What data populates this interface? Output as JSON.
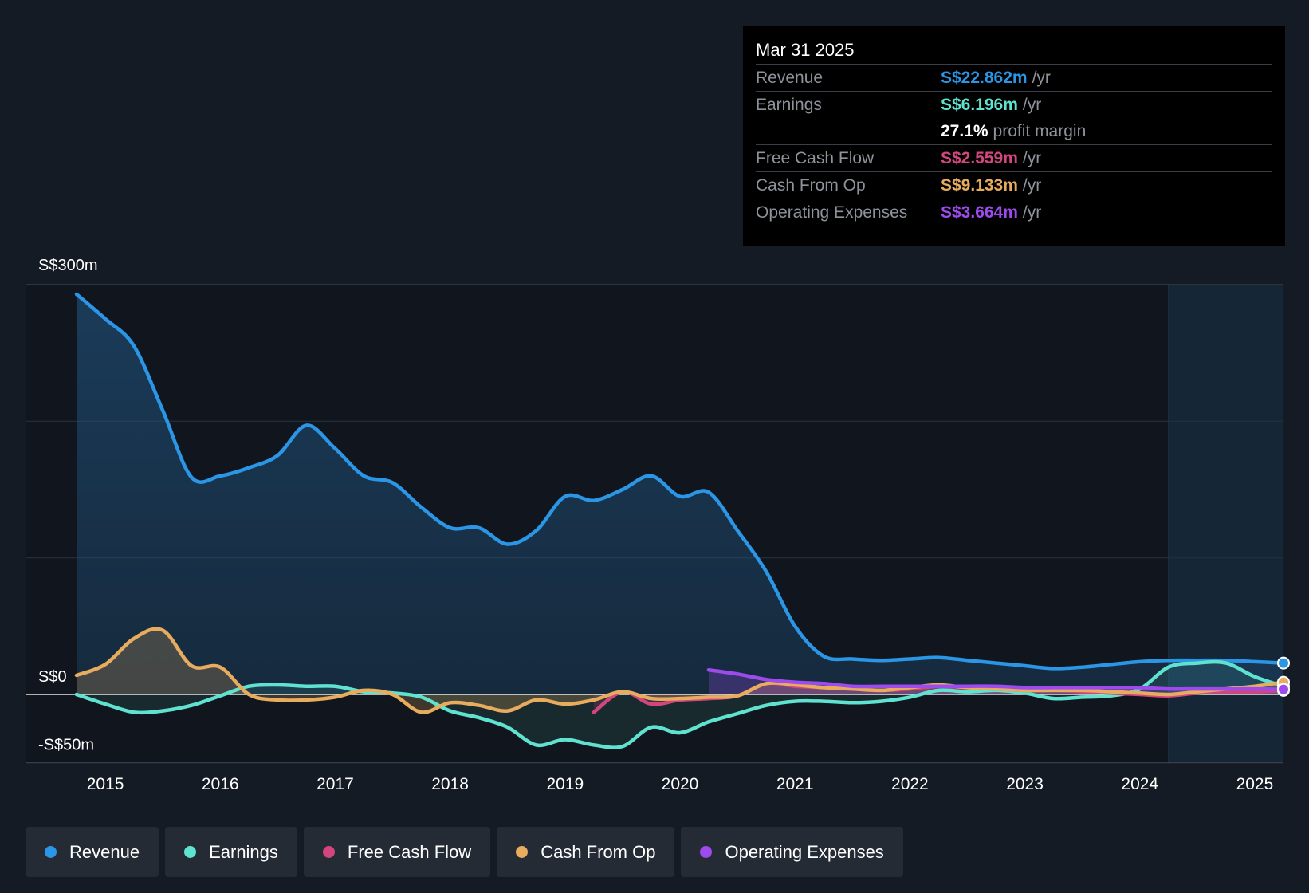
{
  "tooltip": {
    "date": "Mar 31 2025",
    "rows": [
      {
        "label": "Revenue",
        "value": "S$22.862m",
        "unit": "/yr",
        "color": "#2b95e6"
      },
      {
        "label": "Earnings",
        "value": "S$6.196m",
        "unit": "/yr",
        "color": "#5fe3d0"
      },
      {
        "margin_value": "27.1%",
        "margin_text": "profit margin"
      },
      {
        "label": "Free Cash Flow",
        "value": "S$2.559m",
        "unit": "/yr",
        "color": "#d1467e"
      },
      {
        "label": "Cash From Op",
        "value": "S$9.133m",
        "unit": "/yr",
        "color": "#e8ac5e"
      },
      {
        "label": "Operating Expenses",
        "value": "S$3.664m",
        "unit": "/yr",
        "color": "#9d4bec"
      }
    ]
  },
  "legend": [
    {
      "label": "Revenue",
      "color": "#2b95e6"
    },
    {
      "label": "Earnings",
      "color": "#5fe3d0"
    },
    {
      "label": "Free Cash Flow",
      "color": "#d1467e"
    },
    {
      "label": "Cash From Op",
      "color": "#e8ac5e"
    },
    {
      "label": "Operating Expenses",
      "color": "#9d4bec"
    }
  ],
  "chart_data": {
    "type": "area",
    "title": "",
    "xlabel": "",
    "ylabel": "",
    "y_unit": "S$m",
    "xlim": [
      2014.75,
      2025.25
    ],
    "ylim": [
      -50,
      300
    ],
    "y_tick_labels": [
      {
        "value": 300,
        "label": "S$300m"
      },
      {
        "value": 0,
        "label": "S$0"
      },
      {
        "value": -50,
        "label": "-S$50m"
      }
    ],
    "gridlines": [
      300,
      200,
      100,
      0,
      -50
    ],
    "x_ticks": [
      {
        "value": 2015,
        "label": "2015"
      },
      {
        "value": 2016,
        "label": "2016"
      },
      {
        "value": 2017,
        "label": "2017"
      },
      {
        "value": 2018,
        "label": "2018"
      },
      {
        "value": 2019,
        "label": "2019"
      },
      {
        "value": 2020,
        "label": "2020"
      },
      {
        "value": 2021,
        "label": "2021"
      },
      {
        "value": 2022,
        "label": "2022"
      },
      {
        "value": 2023,
        "label": "2023"
      },
      {
        "value": 2024,
        "label": "2024"
      },
      {
        "value": 2025,
        "label": "2025"
      }
    ],
    "highlight_start": 2024.25,
    "series": [
      {
        "name": "Revenue",
        "color": "#2b95e6",
        "fill": true,
        "points": [
          [
            2014.75,
            293
          ],
          [
            2015.0,
            275
          ],
          [
            2015.25,
            255
          ],
          [
            2015.5,
            208
          ],
          [
            2015.75,
            159
          ],
          [
            2016.0,
            160
          ],
          [
            2016.25,
            166
          ],
          [
            2016.5,
            175
          ],
          [
            2016.75,
            197
          ],
          [
            2017.0,
            180
          ],
          [
            2017.25,
            160
          ],
          [
            2017.5,
            155
          ],
          [
            2017.75,
            137
          ],
          [
            2018.0,
            122
          ],
          [
            2018.25,
            122
          ],
          [
            2018.5,
            110
          ],
          [
            2018.75,
            120
          ],
          [
            2019.0,
            145
          ],
          [
            2019.25,
            142
          ],
          [
            2019.5,
            150
          ],
          [
            2019.75,
            160
          ],
          [
            2020.0,
            145
          ],
          [
            2020.25,
            148
          ],
          [
            2020.5,
            120
          ],
          [
            2020.75,
            90
          ],
          [
            2021.0,
            50
          ],
          [
            2021.25,
            28
          ],
          [
            2021.5,
            26
          ],
          [
            2021.75,
            25
          ],
          [
            2022.0,
            26
          ],
          [
            2022.25,
            27
          ],
          [
            2022.5,
            25
          ],
          [
            2022.75,
            23
          ],
          [
            2023.0,
            21
          ],
          [
            2023.25,
            19
          ],
          [
            2023.5,
            20
          ],
          [
            2023.75,
            22
          ],
          [
            2024.0,
            24
          ],
          [
            2024.25,
            25
          ],
          [
            2024.5,
            25
          ],
          [
            2024.75,
            25
          ],
          [
            2025.0,
            24
          ],
          [
            2025.25,
            23
          ]
        ]
      },
      {
        "name": "Earnings",
        "color": "#5fe3d0",
        "fill": true,
        "points": [
          [
            2014.75,
            0
          ],
          [
            2015.0,
            -7
          ],
          [
            2015.25,
            -13
          ],
          [
            2015.5,
            -12
          ],
          [
            2015.75,
            -8
          ],
          [
            2016.0,
            -1
          ],
          [
            2016.25,
            6
          ],
          [
            2016.5,
            7
          ],
          [
            2016.75,
            6
          ],
          [
            2017.0,
            6
          ],
          [
            2017.25,
            2
          ],
          [
            2017.5,
            1
          ],
          [
            2017.75,
            -2
          ],
          [
            2018.0,
            -12
          ],
          [
            2018.25,
            -17
          ],
          [
            2018.5,
            -24
          ],
          [
            2018.75,
            -37
          ],
          [
            2019.0,
            -33
          ],
          [
            2019.25,
            -37
          ],
          [
            2019.5,
            -38
          ],
          [
            2019.75,
            -24
          ],
          [
            2020.0,
            -28
          ],
          [
            2020.25,
            -20
          ],
          [
            2020.5,
            -14
          ],
          [
            2020.75,
            -8
          ],
          [
            2021.0,
            -5
          ],
          [
            2021.25,
            -5
          ],
          [
            2021.5,
            -6
          ],
          [
            2021.75,
            -5
          ],
          [
            2022.0,
            -2
          ],
          [
            2022.25,
            3
          ],
          [
            2022.5,
            2
          ],
          [
            2022.75,
            3
          ],
          [
            2023.0,
            1
          ],
          [
            2023.25,
            -3
          ],
          [
            2023.5,
            -2
          ],
          [
            2023.75,
            -1
          ],
          [
            2024.0,
            4
          ],
          [
            2024.25,
            20
          ],
          [
            2024.5,
            23
          ],
          [
            2024.75,
            23
          ],
          [
            2025.0,
            13
          ],
          [
            2025.25,
            6
          ]
        ]
      },
      {
        "name": "Free Cash Flow",
        "color": "#d1467e",
        "fill": true,
        "points": [
          [
            2019.25,
            -13
          ],
          [
            2019.5,
            2
          ],
          [
            2019.75,
            -7
          ],
          [
            2020.0,
            -4
          ],
          [
            2020.25,
            -3
          ],
          [
            2020.5,
            -1
          ],
          [
            2020.75,
            8
          ],
          [
            2021.0,
            6
          ],
          [
            2021.25,
            5
          ],
          [
            2021.5,
            4
          ],
          [
            2021.75,
            3
          ],
          [
            2022.0,
            4
          ],
          [
            2022.25,
            6
          ],
          [
            2022.5,
            5
          ],
          [
            2022.75,
            4
          ],
          [
            2023.0,
            3
          ],
          [
            2023.25,
            3
          ],
          [
            2023.5,
            2
          ],
          [
            2023.75,
            1
          ],
          [
            2024.0,
            0
          ],
          [
            2024.25,
            -1
          ],
          [
            2024.5,
            1
          ],
          [
            2024.75,
            2
          ],
          [
            2025.0,
            2
          ],
          [
            2025.25,
            3
          ]
        ]
      },
      {
        "name": "Cash From Op",
        "color": "#e8ac5e",
        "fill": true,
        "points": [
          [
            2014.75,
            14
          ],
          [
            2015.0,
            22
          ],
          [
            2015.25,
            41
          ],
          [
            2015.5,
            47
          ],
          [
            2015.75,
            21
          ],
          [
            2016.0,
            20
          ],
          [
            2016.25,
            0
          ],
          [
            2016.5,
            -4
          ],
          [
            2016.75,
            -4
          ],
          [
            2017.0,
            -2
          ],
          [
            2017.25,
            3
          ],
          [
            2017.5,
            0
          ],
          [
            2017.75,
            -13
          ],
          [
            2018.0,
            -6
          ],
          [
            2018.25,
            -8
          ],
          [
            2018.5,
            -12
          ],
          [
            2018.75,
            -4
          ],
          [
            2019.0,
            -7
          ],
          [
            2019.25,
            -4
          ],
          [
            2019.5,
            2
          ],
          [
            2019.75,
            -3
          ],
          [
            2020.0,
            -3
          ],
          [
            2020.25,
            -2
          ],
          [
            2020.5,
            -1
          ],
          [
            2020.75,
            8
          ],
          [
            2021.0,
            7
          ],
          [
            2021.25,
            5
          ],
          [
            2021.5,
            4
          ],
          [
            2021.75,
            3
          ],
          [
            2022.0,
            5
          ],
          [
            2022.25,
            7
          ],
          [
            2022.5,
            5
          ],
          [
            2022.75,
            4
          ],
          [
            2023.0,
            3
          ],
          [
            2023.25,
            3
          ],
          [
            2023.5,
            3
          ],
          [
            2023.75,
            2
          ],
          [
            2024.0,
            1
          ],
          [
            2024.25,
            0
          ],
          [
            2024.5,
            2
          ],
          [
            2024.75,
            4
          ],
          [
            2025.0,
            6
          ],
          [
            2025.25,
            9
          ]
        ]
      },
      {
        "name": "Operating Expenses",
        "color": "#9d4bec",
        "fill": true,
        "points": [
          [
            2020.25,
            18
          ],
          [
            2020.5,
            15
          ],
          [
            2020.75,
            11
          ],
          [
            2021.0,
            9
          ],
          [
            2021.25,
            8
          ],
          [
            2021.5,
            6
          ],
          [
            2021.75,
            6
          ],
          [
            2022.0,
            6
          ],
          [
            2022.25,
            6
          ],
          [
            2022.5,
            6
          ],
          [
            2022.75,
            6
          ],
          [
            2023.0,
            5
          ],
          [
            2023.25,
            5
          ],
          [
            2023.5,
            5
          ],
          [
            2023.75,
            5
          ],
          [
            2024.0,
            5
          ],
          [
            2024.25,
            4
          ],
          [
            2024.5,
            4
          ],
          [
            2024.75,
            4
          ],
          [
            2025.0,
            4
          ],
          [
            2025.25,
            3.7
          ]
        ]
      }
    ]
  }
}
